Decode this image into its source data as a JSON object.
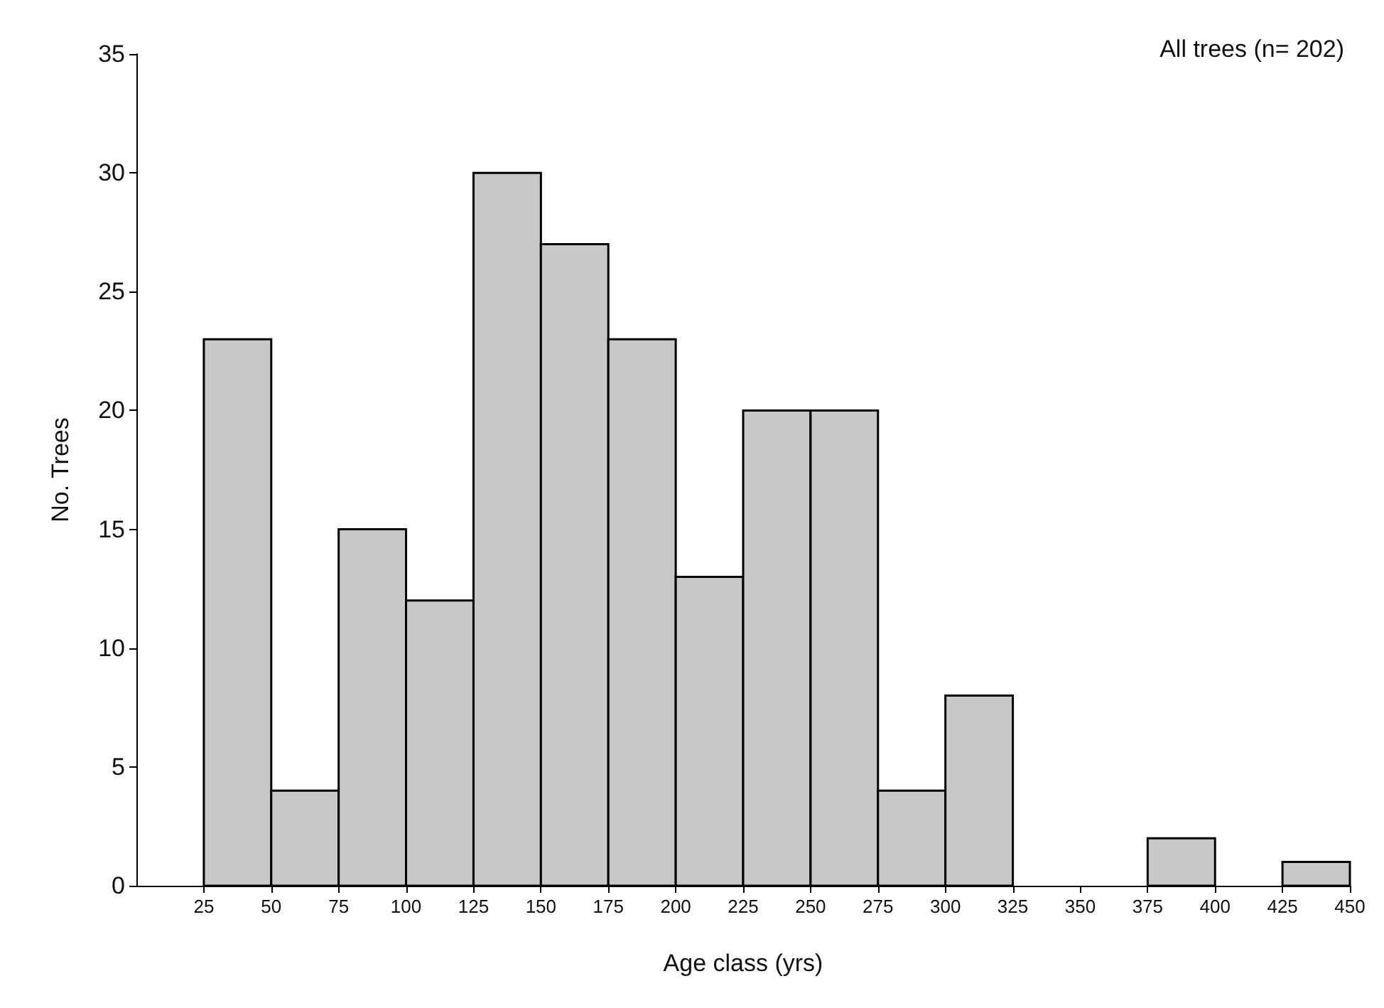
{
  "chart_data": {
    "type": "histogram",
    "xlabel": "Age class (yrs)",
    "ylabel": "No. Trees",
    "annotations": [
      "All trees (n= 202)"
    ],
    "bins": [
      25,
      50,
      75,
      100,
      125,
      150,
      175,
      200,
      225,
      250,
      275,
      300,
      325,
      350,
      375,
      400,
      425,
      450
    ],
    "values": [
      23,
      4,
      15,
      12,
      30,
      27,
      23,
      13,
      20,
      20,
      4,
      8,
      0,
      0,
      2,
      0,
      1
    ],
    "color": "#c8c8c8",
    "xlim": [
      0,
      450
    ],
    "xticks": [
      25,
      50,
      75,
      100,
      125,
      150,
      175,
      200,
      225,
      250,
      275,
      300,
      325,
      350,
      375,
      400,
      425,
      450
    ],
    "ylim": [
      0,
      35
    ],
    "yticks": [
      0,
      5,
      10,
      15,
      20,
      25,
      30,
      35
    ],
    "grid": false
  }
}
